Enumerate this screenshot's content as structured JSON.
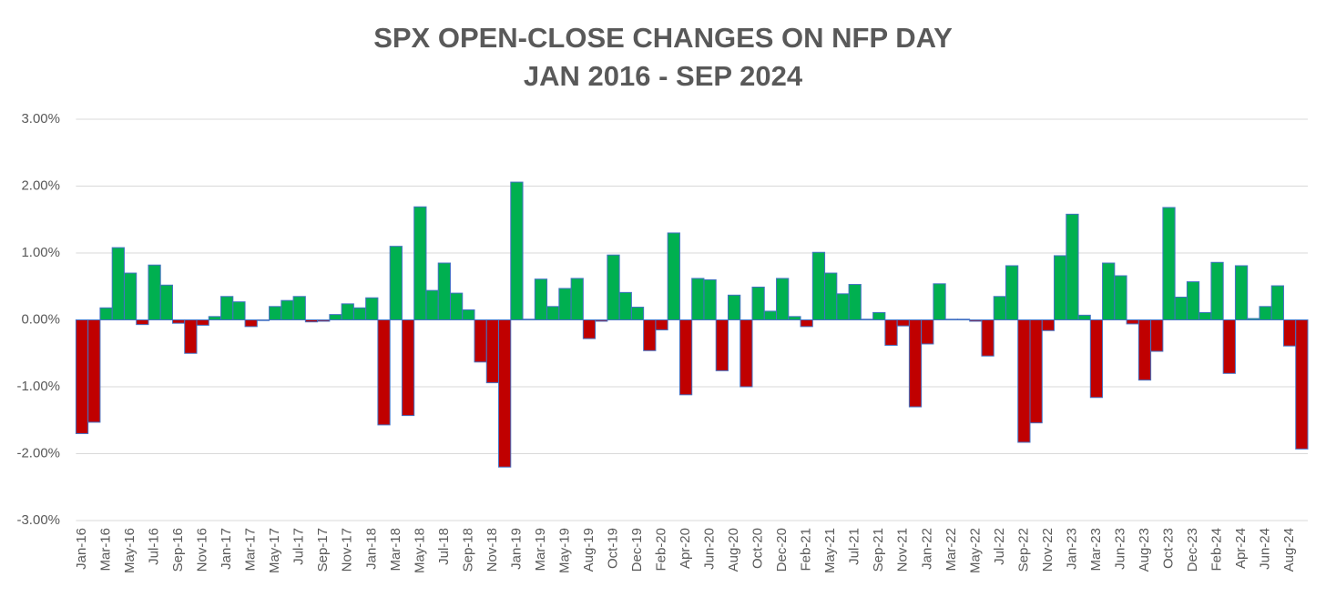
{
  "chart_data": {
    "type": "bar",
    "title": "SPX OPEN-CLOSE CHANGES ON NFP DAY",
    "subtitle": "JAN 2016 - SEP 2024",
    "categories": [
      "Jan-16",
      null,
      "Mar-16",
      null,
      "May-16",
      null,
      "Jul-16",
      null,
      "Sep-16",
      null,
      "Nov-16",
      null,
      "Jan-17",
      null,
      "Mar-17",
      null,
      "May-17",
      null,
      "Jul-17",
      null,
      "Sep-17",
      null,
      "Nov-17",
      null,
      "Jan-18",
      null,
      "Mar-18",
      null,
      "May-18",
      null,
      "Jul-18",
      null,
      "Sep-18",
      null,
      "Nov-18",
      null,
      "Jan-19",
      null,
      "Mar-19",
      null,
      "May-19",
      null,
      "Aug-19",
      null,
      "Oct-19",
      null,
      "Dec-19",
      null,
      "Feb-20",
      null,
      "Apr-20",
      null,
      "Jun-20",
      null,
      "Aug-20",
      null,
      "Oct-20",
      null,
      "Dec-20",
      null,
      "Feb-21",
      null,
      "May-21",
      null,
      "Jul-21",
      null,
      "Sep-21",
      null,
      "Nov-21",
      null,
      "Jan-22",
      null,
      "Mar-22",
      null,
      "May-22",
      null,
      "Jul-22",
      null,
      "Sep-22",
      null,
      "Nov-22",
      null,
      "Jan-23",
      null,
      "Mar-23",
      null,
      "Jun-23",
      null,
      "Aug-23",
      null,
      "Oct-23",
      null,
      "Dec-23",
      null,
      "Feb-24",
      null,
      "Apr-24",
      null,
      "Jun-24",
      null,
      "Aug-24",
      null
    ],
    "values": [
      -1.7,
      -1.53,
      0.18,
      1.08,
      0.7,
      -0.07,
      0.82,
      0.52,
      -0.05,
      -0.5,
      -0.08,
      0.05,
      0.35,
      0.27,
      -0.1,
      -0.01,
      0.2,
      0.29,
      0.35,
      -0.03,
      -0.02,
      0.08,
      0.24,
      0.18,
      0.33,
      -1.57,
      1.1,
      -1.43,
      1.69,
      0.44,
      0.85,
      0.4,
      0.15,
      -0.63,
      -0.94,
      -2.2,
      2.06,
      0.01,
      0.61,
      0.2,
      0.47,
      0.62,
      -0.28,
      -0.02,
      0.97,
      0.41,
      0.19,
      -0.46,
      -0.15,
      1.3,
      -1.12,
      0.62,
      0.6,
      -0.76,
      0.37,
      -1.0,
      0.49,
      0.13,
      0.62,
      0.05,
      -0.1,
      1.01,
      0.7,
      0.39,
      0.53,
      0.01,
      0.11,
      -0.38,
      -0.09,
      -1.3,
      -0.36,
      0.54,
      0.01,
      0.01,
      -0.02,
      -0.54,
      0.35,
      0.81,
      -1.83,
      -1.54,
      -0.16,
      0.96,
      1.58,
      0.07,
      -1.16,
      0.85,
      0.66,
      -0.06,
      -0.9,
      -0.47,
      1.68,
      0.34,
      0.57,
      0.11,
      0.86,
      -0.8,
      0.81,
      0.02,
      0.2,
      0.51,
      -0.39,
      -1.93
    ],
    "positive_color": "#00b050",
    "negative_color": "#c00000",
    "edge_color": "#4472c4",
    "ylim": [
      -3,
      3
    ],
    "yticks": [
      {
        "value": -3,
        "label": "-3.00%"
      },
      {
        "value": -2,
        "label": "-2.00%"
      },
      {
        "value": -1,
        "label": "-1.00%"
      },
      {
        "value": 0,
        "label": "0.00%"
      },
      {
        "value": 1,
        "label": "1.00%"
      },
      {
        "value": 2,
        "label": "2.00%"
      },
      {
        "value": 3,
        "label": "3.00%"
      }
    ],
    "grid": true
  }
}
